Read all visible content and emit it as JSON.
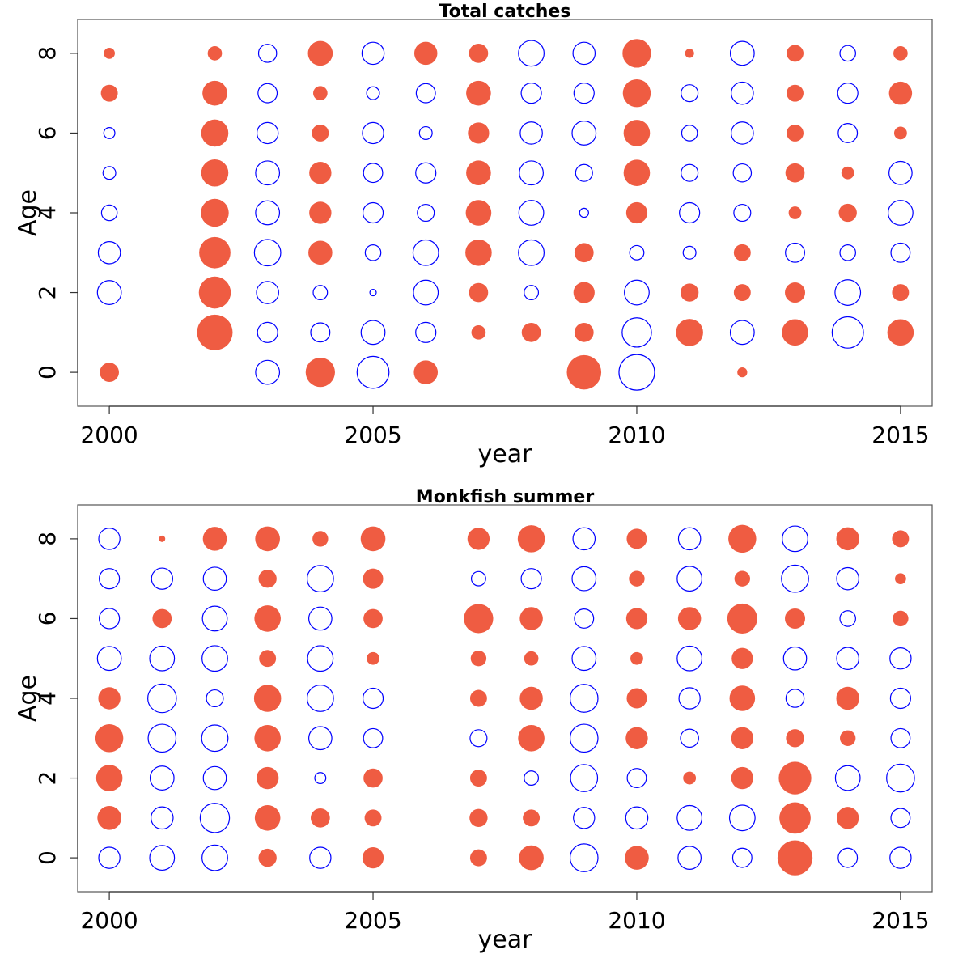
{
  "chart_data": [
    {
      "type": "scatter",
      "subtype": "bubble",
      "title": "Total catches",
      "xlabel": "year",
      "ylabel": "Age",
      "xlim": [
        1999.4,
        2015.6
      ],
      "ylim": [
        -0.85,
        8.85
      ],
      "x_ticks": [
        2000,
        2005,
        2010,
        2015
      ],
      "y_ticks": [
        0,
        2,
        4,
        6,
        8
      ],
      "grid": false,
      "colors": {
        "positive": "#ef5c42",
        "negative": "#0000ff"
      },
      "ages": [
        0,
        1,
        2,
        3,
        4,
        5,
        6,
        7,
        8
      ],
      "years": [
        2000,
        2002,
        2003,
        2004,
        2005,
        2006,
        2007,
        2008,
        2009,
        2010,
        2011,
        2012,
        2013,
        2014,
        2015
      ],
      "values_by_age": [
        [
          0.45,
          0,
          -0.7,
          1.05,
          -1.25,
          0.7,
          0,
          0,
          1.45,
          -1.55,
          0,
          0.12,
          0,
          0,
          0
        ],
        [
          0.0,
          1.55,
          -0.5,
          -0.45,
          -0.7,
          -0.5,
          0.25,
          0.45,
          0.45,
          -1.05,
          0.9,
          -0.7,
          0.85,
          -1.2,
          0.85
        ],
        [
          -0.7,
          1.25,
          -0.6,
          -0.25,
          -0.05,
          -0.75,
          0.45,
          -0.25,
          0.55,
          -0.75,
          0.4,
          0.35,
          0.5,
          -0.8,
          0.35
        ],
        [
          -0.6,
          1.2,
          -0.85,
          0.7,
          -0.3,
          -0.8,
          0.85,
          -0.8,
          0.45,
          -0.25,
          -0.2,
          0.35,
          -0.45,
          -0.3,
          -0.45
        ],
        [
          -0.3,
          0.95,
          -0.7,
          0.6,
          -0.5,
          -0.35,
          0.8,
          -0.75,
          -0.1,
          0.55,
          -0.5,
          -0.35,
          0.2,
          0.4,
          -0.75
        ],
        [
          -0.2,
          0.9,
          -0.7,
          0.6,
          -0.45,
          -0.5,
          0.75,
          -0.7,
          -0.35,
          0.85,
          -0.35,
          -0.4,
          0.45,
          0.2,
          -0.65
        ],
        [
          -0.15,
          0.9,
          -0.55,
          0.35,
          -0.55,
          -0.2,
          0.55,
          -0.6,
          -0.7,
          0.85,
          -0.3,
          -0.6,
          0.35,
          -0.45,
          0.2
        ],
        [
          0.35,
          0.75,
          -0.45,
          0.25,
          -0.2,
          -0.45,
          0.75,
          -0.5,
          -0.5,
          0.95,
          -0.35,
          -0.6,
          0.35,
          -0.5,
          0.65
        ],
        [
          0.15,
          0.25,
          -0.4,
          0.75,
          -0.6,
          0.65,
          0.45,
          -0.8,
          -0.6,
          1.0,
          0.1,
          -0.7,
          0.35,
          -0.3,
          0.25
        ]
      ]
    },
    {
      "type": "scatter",
      "subtype": "bubble",
      "title": "Monkfish summer",
      "xlabel": "year",
      "ylabel": "Age",
      "xlim": [
        1999.4,
        2015.6
      ],
      "ylim": [
        -0.85,
        8.85
      ],
      "x_ticks": [
        2000,
        2005,
        2010,
        2015
      ],
      "y_ticks": [
        0,
        2,
        4,
        6,
        8
      ],
      "grid": false,
      "colors": {
        "positive": "#ef5c42",
        "negative": "#0000ff"
      },
      "ages": [
        0,
        1,
        2,
        3,
        4,
        5,
        6,
        7,
        8
      ],
      "years": [
        2000,
        2001,
        2002,
        2003,
        2004,
        2005,
        2007,
        2008,
        2009,
        2010,
        2011,
        2012,
        2013,
        2014,
        2015
      ],
      "values_by_age": [
        [
          -0.55,
          -0.75,
          -0.8,
          0.4,
          -0.55,
          0.55,
          0.35,
          0.75,
          -0.95,
          0.7,
          -0.65,
          -0.45,
          1.5,
          -0.45,
          -0.55
        ],
        [
          0.7,
          -0.6,
          -1.05,
          0.8,
          0.45,
          0.35,
          0.4,
          0.35,
          -0.55,
          -0.6,
          -0.75,
          -0.8,
          1.2,
          0.6,
          -0.45
        ],
        [
          0.85,
          -0.7,
          -0.65,
          0.6,
          -0.15,
          0.45,
          0.35,
          -0.25,
          -0.9,
          -0.45,
          0.2,
          0.6,
          1.3,
          -0.75,
          -0.95
        ],
        [
          0.95,
          -0.95,
          -0.85,
          0.85,
          -0.65,
          -0.45,
          -0.35,
          0.85,
          -0.95,
          0.6,
          -0.4,
          0.6,
          0.4,
          0.3,
          -0.45
        ],
        [
          0.6,
          -1.0,
          -0.35,
          0.9,
          -0.85,
          -0.5,
          0.35,
          0.65,
          -0.95,
          0.5,
          -0.55,
          0.8,
          -0.4,
          0.65,
          -0.5
        ],
        [
          -0.7,
          -0.75,
          -0.8,
          0.35,
          -0.8,
          0.2,
          0.3,
          0.25,
          -0.7,
          0.2,
          -0.75,
          0.55,
          -0.65,
          -0.6,
          -0.55
        ],
        [
          -0.5,
          0.45,
          -0.75,
          0.85,
          -0.65,
          0.45,
          1.05,
          0.65,
          -0.45,
          0.55,
          0.65,
          1.1,
          0.5,
          -0.3,
          0.3
        ],
        [
          -0.5,
          -0.55,
          -0.65,
          0.4,
          -0.85,
          0.5,
          -0.25,
          -0.5,
          -0.7,
          0.3,
          -0.75,
          0.3,
          -0.9,
          -0.6,
          0.15
        ],
        [
          -0.55,
          0.05,
          0.7,
          0.75,
          0.3,
          0.75,
          0.6,
          0.9,
          -0.6,
          0.5,
          -0.6,
          0.95,
          -0.8,
          0.65,
          0.35
        ]
      ]
    }
  ]
}
